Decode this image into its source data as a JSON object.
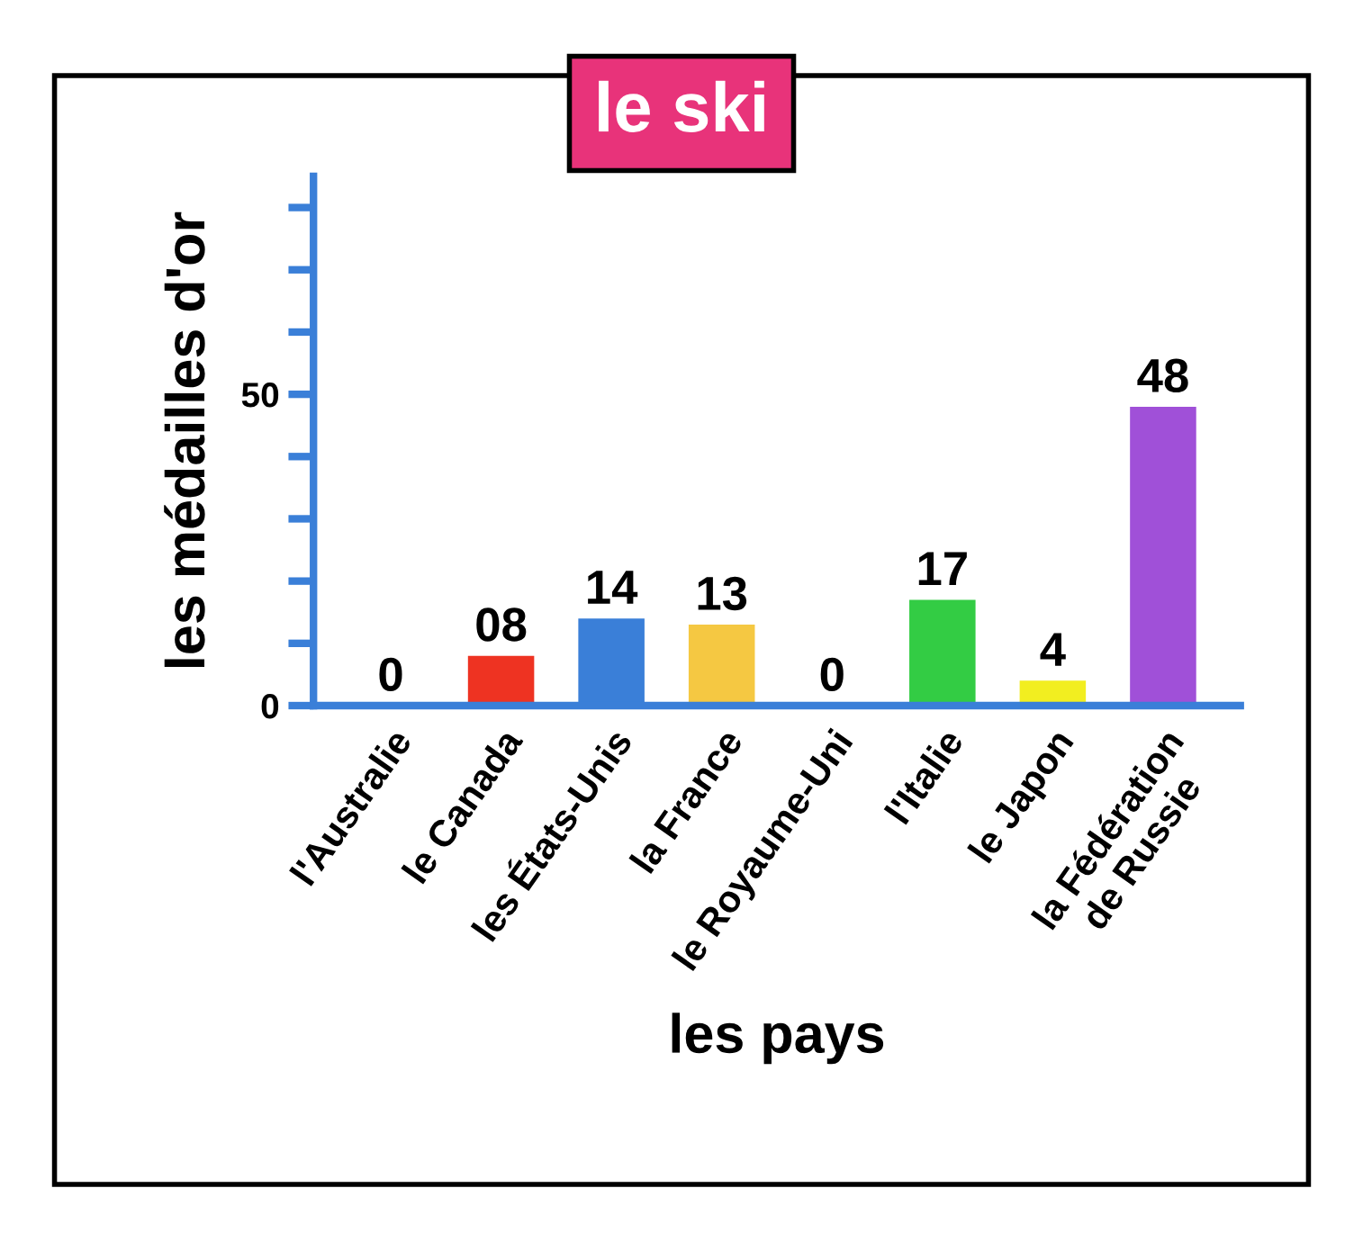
{
  "chart_data": {
    "type": "bar",
    "title": "le ski",
    "xlabel": "les pays",
    "ylabel": "les médailles d'or",
    "categories": [
      "l'Australie",
      "le Canada",
      "les États-Unis",
      "la France",
      "le Royaume-Uni",
      "l'Italie",
      "le Japon",
      "la Fédération\nde Russie"
    ],
    "values": [
      0,
      8,
      14,
      13,
      0,
      17,
      4,
      48
    ],
    "value_labels": [
      "0",
      "08",
      "14",
      "13",
      "0",
      "17",
      "4",
      "48"
    ],
    "colors": [
      "#3a7fd8",
      "#ee3322",
      "#3a7fd8",
      "#f5c842",
      "#3a7fd8",
      "#33cc44",
      "#f2ee20",
      "#a050d8"
    ],
    "ylim": [
      0,
      85
    ],
    "yticks": [
      0,
      {
        "value": 10,
        "label": null
      },
      {
        "value": 20,
        "label": null
      },
      {
        "value": 30,
        "label": null
      },
      {
        "value": 40,
        "label": null
      },
      50,
      {
        "value": 60,
        "label": null
      },
      {
        "value": 70,
        "label": null
      },
      {
        "value": 80,
        "label": null
      }
    ],
    "grid": false,
    "legend": false
  }
}
